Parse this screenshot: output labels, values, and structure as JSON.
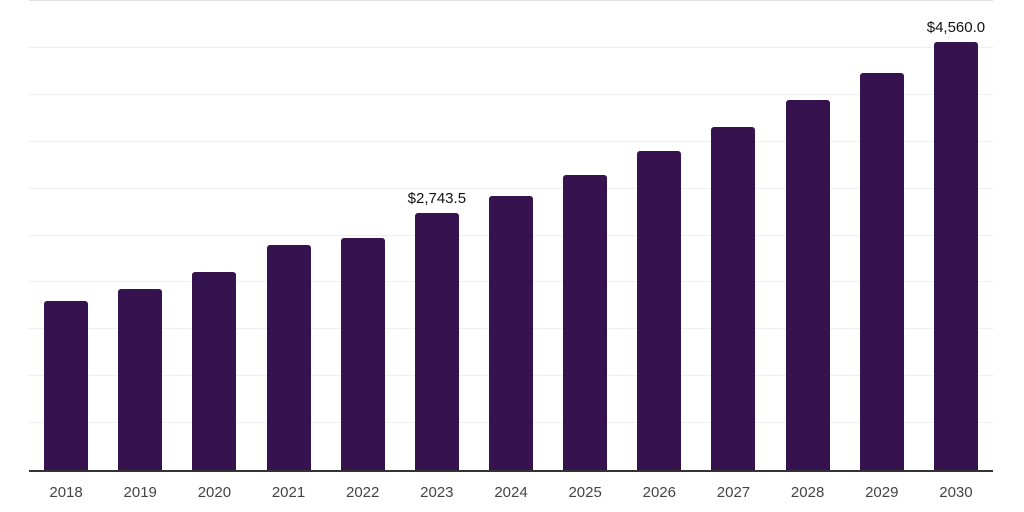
{
  "chart_data": {
    "type": "bar",
    "title": "",
    "xlabel": "",
    "ylabel": "",
    "categories": [
      "2018",
      "2019",
      "2020",
      "2021",
      "2022",
      "2023",
      "2024",
      "2025",
      "2026",
      "2027",
      "2028",
      "2029",
      "2030"
    ],
    "values": [
      1800,
      1935,
      2115,
      2395,
      2470,
      2743.5,
      2920,
      3145,
      3400,
      3660,
      3940,
      4235,
      4560
    ],
    "value_labels": [
      "",
      "",
      "",
      "",
      "",
      "$2,743.5",
      "",
      "",
      "",
      "",
      "",
      "",
      "$4,560.0"
    ],
    "ylim": [
      0,
      5000
    ],
    "grid_step": 500,
    "grid": true,
    "legend": false,
    "y_axis_labels_visible": false,
    "bar_color": "#36134f",
    "gridline_color": "#f0f0f0",
    "gridline_top_color": "#e2e2e2",
    "axis_line_color": "#333333",
    "value_label_color": "#111111",
    "tick_label_color": "#444444"
  }
}
